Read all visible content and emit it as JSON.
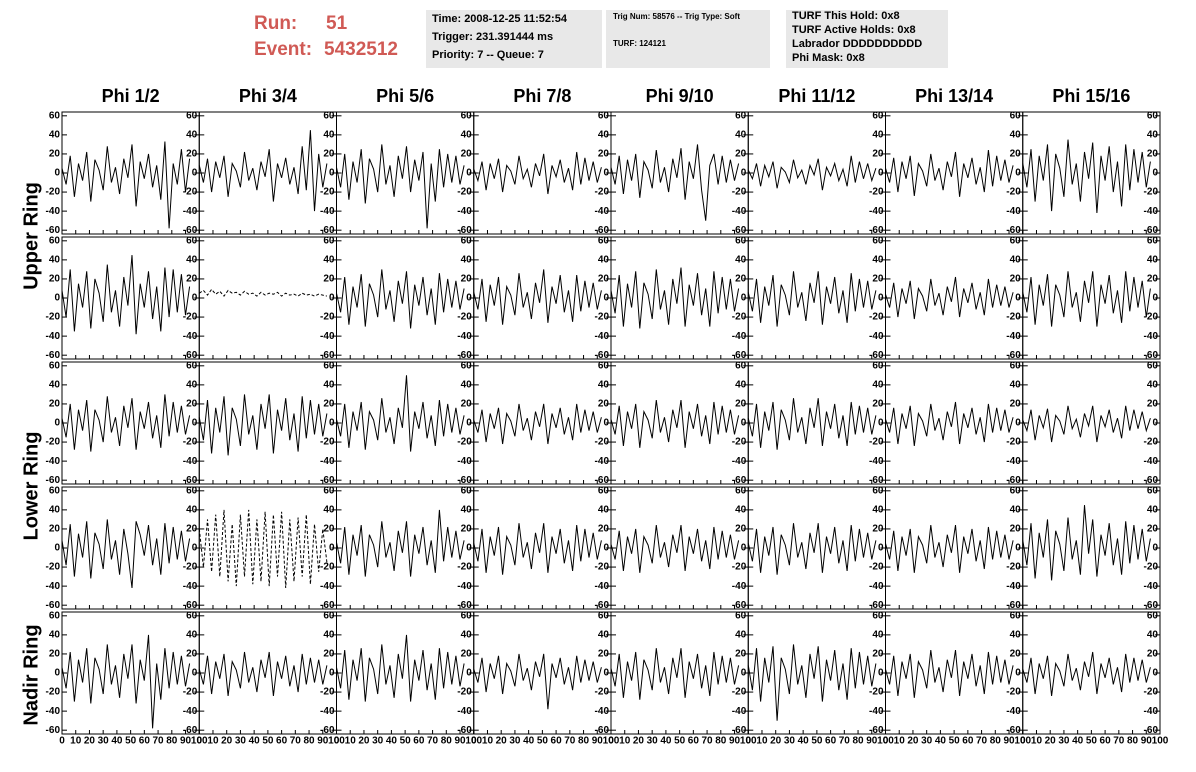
{
  "header": {
    "run_label": "Run:",
    "run": "51",
    "event_label": "Event:",
    "event": "5432512",
    "boxes": [
      [
        "Time: 2008-12-25 11:52:54",
        "Trigger: 231.391444 ms",
        "Priority: 7 -- Queue: 7"
      ],
      [
        "Trig Num: 58576 -- Trig Type: Soft",
        "TURF: 124121"
      ],
      [
        "TURF This Hold: 0x8",
        "TURF Active Holds: 0x8",
        "Labrador DDDDDDDDDD",
        "Phi Mask: 0x8"
      ]
    ]
  },
  "columns": [
    "Phi 1/2",
    "Phi 3/4",
    "Phi 5/6",
    "Phi 7/8",
    "Phi 9/10",
    "Phi 11/12",
    "Phi 13/14",
    "Phi 15/16"
  ],
  "rows": [
    "Upper Ring",
    "Lower Ring",
    "Nadir Ring"
  ],
  "axes": {
    "xlim": [
      0,
      100
    ],
    "ylim": [
      -64,
      64
    ],
    "xticks": [
      0,
      10,
      20,
      30,
      40,
      50,
      60,
      70,
      80,
      90,
      100
    ],
    "yticks": [
      -60,
      -40,
      -20,
      0,
      20,
      40,
      60
    ]
  },
  "dashed": [
    [
      1,
      1
    ],
    [
      3,
      1
    ]
  ],
  "x": [
    0,
    3,
    6,
    9,
    12,
    15,
    18,
    21,
    24,
    27,
    30,
    33,
    36,
    39,
    42,
    45,
    48,
    51,
    54,
    57,
    60,
    63,
    66,
    69,
    72,
    75,
    78,
    81,
    84,
    87,
    90,
    93
  ],
  "waveforms": [
    [
      [
        5,
        -12,
        18,
        -25,
        10,
        -8,
        22,
        -30,
        14,
        3,
        -18,
        28,
        -10,
        6,
        -22,
        15,
        -5,
        30,
        -35,
        12,
        -6,
        20,
        -15,
        8,
        -28,
        33,
        -58,
        10,
        -12,
        25,
        -20,
        15
      ],
      [
        8,
        -10,
        15,
        -20,
        12,
        -5,
        18,
        -25,
        10,
        2,
        -15,
        22,
        -8,
        5,
        -18,
        12,
        -4,
        25,
        -30,
        10,
        -5,
        16,
        -12,
        6,
        -22,
        28,
        -18,
        45,
        -40,
        20,
        -15,
        10
      ],
      [
        6,
        -15,
        20,
        -28,
        12,
        -10,
        25,
        -32,
        15,
        4,
        -20,
        30,
        -12,
        8,
        -25,
        18,
        -6,
        28,
        -20,
        14,
        -8,
        22,
        -58,
        10,
        -30,
        25,
        -15,
        20,
        -10,
        18,
        -12,
        8
      ],
      [
        4,
        -8,
        12,
        -18,
        10,
        -6,
        15,
        -20,
        8,
        2,
        -12,
        18,
        -6,
        4,
        -15,
        10,
        -3,
        20,
        -22,
        8,
        -4,
        14,
        -10,
        5,
        -18,
        22,
        -12,
        16,
        -8,
        12,
        -10,
        6
      ],
      [
        6,
        -12,
        18,
        -22,
        14,
        -8,
        20,
        -26,
        12,
        3,
        -16,
        24,
        -10,
        6,
        -20,
        15,
        -5,
        26,
        -28,
        12,
        -6,
        30,
        -18,
        -50,
        8,
        20,
        -12,
        18,
        -10,
        14,
        -8,
        10
      ],
      [
        3,
        -6,
        10,
        -14,
        8,
        -4,
        12,
        -16,
        6,
        1,
        -10,
        14,
        -5,
        3,
        -12,
        8,
        -2,
        15,
        -18,
        6,
        -3,
        10,
        -8,
        4,
        -14,
        18,
        -10,
        12,
        -6,
        10,
        -8,
        5
      ],
      [
        5,
        -10,
        16,
        -20,
        12,
        -6,
        18,
        -24,
        10,
        2,
        -14,
        20,
        -8,
        5,
        -18,
        12,
        -4,
        22,
        -25,
        10,
        -5,
        16,
        -12,
        6,
        -20,
        24,
        -14,
        18,
        -8,
        14,
        -10,
        8
      ],
      [
        10,
        -15,
        25,
        -30,
        18,
        -8,
        30,
        -40,
        20,
        5,
        -25,
        35,
        -12,
        10,
        -30,
        22,
        -6,
        32,
        -42,
        18,
        -8,
        28,
        -20,
        12,
        -35,
        30,
        -18,
        25,
        -10,
        22,
        -15,
        12
      ]
    ],
    [
      [
        8,
        -20,
        30,
        -35,
        15,
        -10,
        28,
        -32,
        20,
        5,
        -25,
        35,
        -15,
        8,
        -30,
        22,
        -8,
        45,
        -38,
        15,
        -10,
        28,
        -22,
        12,
        -35,
        32,
        -20,
        30,
        -15,
        25,
        -18,
        12
      ],
      [
        5,
        8,
        3,
        9,
        4,
        7,
        2,
        8,
        5,
        6,
        3,
        7,
        4,
        5,
        2,
        6,
        3,
        5,
        4,
        6,
        2,
        5,
        3,
        4,
        2,
        5,
        3,
        4,
        2,
        4,
        3,
        2
      ],
      [
        5,
        -15,
        22,
        -28,
        12,
        -10,
        25,
        -30,
        15,
        3,
        -20,
        30,
        -12,
        8,
        -25,
        18,
        -6,
        28,
        -32,
        14,
        -8,
        22,
        -18,
        10,
        -28,
        26,
        -15,
        20,
        -10,
        18,
        -12,
        10
      ],
      [
        6,
        -12,
        20,
        -25,
        14,
        -8,
        22,
        -28,
        12,
        3,
        -18,
        26,
        -10,
        6,
        -22,
        16,
        -5,
        30,
        -26,
        12,
        -6,
        24,
        -15,
        8,
        -25,
        24,
        -14,
        18,
        -10,
        16,
        -12,
        8
      ],
      [
        8,
        -16,
        24,
        -30,
        15,
        -10,
        28,
        -32,
        16,
        4,
        -22,
        30,
        -12,
        8,
        -28,
        20,
        -6,
        32,
        -30,
        14,
        -8,
        26,
        -18,
        10,
        -30,
        28,
        -16,
        22,
        -12,
        20,
        -14,
        10
      ],
      [
        6,
        -14,
        20,
        -26,
        12,
        -8,
        24,
        -30,
        14,
        3,
        -18,
        28,
        -10,
        6,
        -24,
        16,
        -5,
        28,
        -28,
        12,
        -6,
        22,
        -16,
        8,
        -26,
        26,
        -14,
        20,
        -10,
        18,
        -12,
        8
      ],
      [
        4,
        -10,
        16,
        -20,
        10,
        -6,
        18,
        -22,
        10,
        2,
        -14,
        20,
        -8,
        5,
        -18,
        12,
        -4,
        22,
        -20,
        10,
        -5,
        16,
        -12,
        6,
        -18,
        20,
        -10,
        14,
        -8,
        12,
        -10,
        6
      ],
      [
        6,
        -15,
        22,
        -28,
        14,
        -8,
        25,
        -30,
        14,
        3,
        -20,
        28,
        -10,
        6,
        -25,
        18,
        -5,
        28,
        -30,
        14,
        -6,
        24,
        -16,
        8,
        -26,
        28,
        -14,
        22,
        -10,
        18,
        -20,
        10
      ]
    ],
    [
      [
        5,
        -15,
        20,
        -28,
        14,
        -8,
        24,
        -30,
        14,
        3,
        -20,
        28,
        -10,
        6,
        -24,
        18,
        -5,
        26,
        -28,
        12,
        -6,
        22,
        -16,
        8,
        -26,
        30,
        -14,
        22,
        -10,
        18,
        -12,
        8
      ],
      [
        6,
        -18,
        24,
        -32,
        16,
        -10,
        28,
        -34,
        16,
        4,
        -24,
        30,
        -12,
        8,
        -28,
        20,
        -6,
        30,
        -32,
        14,
        -8,
        26,
        -18,
        10,
        -30,
        28,
        -16,
        24,
        -12,
        20,
        -14,
        10
      ],
      [
        4,
        -14,
        20,
        -26,
        12,
        -8,
        22,
        -28,
        12,
        3,
        -18,
        26,
        -10,
        6,
        -22,
        16,
        -5,
        50,
        -30,
        12,
        -6,
        22,
        -16,
        8,
        -24,
        24,
        -14,
        20,
        -10,
        16,
        -12,
        8
      ],
      [
        3,
        -10,
        14,
        -20,
        10,
        -6,
        16,
        -22,
        10,
        2,
        -14,
        20,
        -8,
        5,
        -18,
        12,
        -4,
        20,
        -22,
        10,
        -5,
        16,
        -12,
        6,
        -18,
        20,
        -10,
        14,
        -8,
        12,
        -10,
        6
      ],
      [
        4,
        -12,
        18,
        -24,
        12,
        -6,
        20,
        -26,
        12,
        3,
        -16,
        24,
        -10,
        6,
        -20,
        14,
        -5,
        24,
        -26,
        12,
        -6,
        20,
        -14,
        8,
        -22,
        22,
        -12,
        18,
        -10,
        14,
        -12,
        8
      ],
      [
        5,
        -14,
        20,
        -26,
        12,
        -8,
        22,
        -28,
        14,
        3,
        -18,
        26,
        -10,
        6,
        -22,
        16,
        -5,
        26,
        -24,
        12,
        -6,
        20,
        -16,
        8,
        -24,
        22,
        -12,
        18,
        -10,
        16,
        -12,
        8
      ],
      [
        4,
        -10,
        16,
        -22,
        10,
        -6,
        18,
        -24,
        10,
        2,
        -14,
        20,
        -8,
        5,
        -18,
        12,
        -4,
        22,
        -22,
        10,
        -5,
        16,
        -12,
        6,
        -20,
        20,
        -10,
        16,
        -8,
        14,
        -10,
        6
      ],
      [
        3,
        -8,
        14,
        -18,
        8,
        -5,
        15,
        -20,
        8,
        2,
        -12,
        18,
        -6,
        4,
        -15,
        10,
        -3,
        18,
        -20,
        8,
        -4,
        14,
        -10,
        5,
        -16,
        18,
        -8,
        14,
        -6,
        12,
        -8,
        5
      ]
    ],
    [
      [
        8,
        -18,
        25,
        -30,
        15,
        -10,
        28,
        -32,
        16,
        4,
        -22,
        30,
        -12,
        8,
        -28,
        20,
        -6,
        -42,
        28,
        14,
        -8,
        24,
        -18,
        10,
        -28,
        26,
        -16,
        22,
        -12,
        18,
        -14,
        10
      ],
      [
        20,
        -20,
        30,
        -25,
        35,
        -30,
        40,
        -35,
        25,
        -40,
        35,
        -30,
        40,
        -38,
        30,
        -35,
        38,
        -40,
        35,
        -30,
        38,
        -42,
        30,
        -35,
        32,
        -30,
        35,
        -38,
        25,
        -25,
        20,
        -15
      ],
      [
        6,
        -16,
        22,
        -28,
        14,
        -8,
        24,
        -30,
        14,
        3,
        -20,
        28,
        -10,
        6,
        -24,
        18,
        -5,
        28,
        -30,
        14,
        -6,
        22,
        -18,
        8,
        -26,
        40,
        -14,
        22,
        -10,
        18,
        -12,
        8
      ],
      [
        5,
        -14,
        20,
        -26,
        12,
        -8,
        22,
        -28,
        12,
        3,
        -18,
        26,
        -10,
        6,
        -22,
        16,
        -5,
        26,
        -26,
        12,
        -6,
        20,
        -16,
        8,
        -24,
        24,
        -14,
        20,
        -10,
        16,
        -12,
        8
      ],
      [
        4,
        -12,
        18,
        -24,
        12,
        -6,
        20,
        -26,
        12,
        3,
        -16,
        24,
        -10,
        6,
        -20,
        14,
        -5,
        24,
        -24,
        12,
        -6,
        20,
        -14,
        8,
        -22,
        22,
        -12,
        18,
        -10,
        14,
        -12,
        8
      ],
      [
        5,
        -14,
        20,
        -26,
        12,
        -8,
        22,
        -28,
        14,
        3,
        -18,
        26,
        -10,
        6,
        -22,
        16,
        -5,
        26,
        -26,
        12,
        -6,
        22,
        -16,
        8,
        -24,
        24,
        -14,
        20,
        -10,
        16,
        -12,
        8
      ],
      [
        5,
        -12,
        18,
        -24,
        12,
        -8,
        20,
        -26,
        12,
        3,
        -16,
        24,
        -10,
        6,
        -20,
        14,
        -5,
        24,
        -26,
        12,
        -6,
        20,
        -14,
        8,
        -22,
        22,
        -12,
        18,
        -10,
        14,
        -12,
        8
      ],
      [
        8,
        -18,
        26,
        -32,
        16,
        -10,
        30,
        -34,
        18,
        4,
        -24,
        32,
        -12,
        8,
        -28,
        45,
        -6,
        30,
        -30,
        14,
        -8,
        26,
        -18,
        10,
        -28,
        28,
        -16,
        24,
        -12,
        20,
        -14,
        10
      ]
    ],
    [
      [
        6,
        -16,
        22,
        -30,
        14,
        -10,
        26,
        -32,
        16,
        4,
        -22,
        30,
        -12,
        8,
        -26,
        20,
        -6,
        30,
        -32,
        14,
        -8,
        40,
        -58,
        10,
        -28,
        26,
        -16,
        22,
        -12,
        18,
        -14,
        10
      ],
      [
        4,
        -12,
        18,
        -22,
        12,
        -6,
        20,
        -24,
        12,
        3,
        -16,
        22,
        -10,
        6,
        -20,
        14,
        -5,
        22,
        -24,
        12,
        -6,
        18,
        -14,
        8,
        -20,
        20,
        -12,
        16,
        -10,
        14,
        -12,
        8
      ],
      [
        6,
        -16,
        24,
        -28,
        14,
        -8,
        26,
        -30,
        16,
        4,
        -22,
        30,
        -12,
        8,
        -26,
        20,
        -6,
        40,
        -30,
        14,
        -8,
        24,
        -18,
        10,
        -28,
        26,
        -16,
        22,
        -12,
        18,
        -14,
        10
      ],
      [
        4,
        -10,
        16,
        -20,
        10,
        -6,
        18,
        -22,
        10,
        2,
        -14,
        20,
        -8,
        5,
        -18,
        12,
        -4,
        20,
        -38,
        10,
        -5,
        16,
        -12,
        6,
        -18,
        18,
        -10,
        14,
        -8,
        12,
        -10,
        6
      ],
      [
        5,
        -14,
        20,
        -26,
        12,
        -8,
        22,
        -28,
        14,
        3,
        -18,
        26,
        -10,
        6,
        -22,
        16,
        -5,
        26,
        -26,
        12,
        -6,
        20,
        -16,
        8,
        -24,
        22,
        -12,
        18,
        -10,
        16,
        -12,
        8
      ],
      [
        8,
        -18,
        26,
        -30,
        16,
        -10,
        28,
        -50,
        16,
        4,
        -22,
        30,
        -12,
        8,
        -26,
        20,
        -6,
        28,
        -30,
        14,
        -8,
        24,
        -18,
        10,
        -28,
        26,
        -16,
        22,
        -12,
        18,
        -14,
        10
      ],
      [
        4,
        -12,
        18,
        -24,
        12,
        -6,
        20,
        -26,
        12,
        3,
        -16,
        24,
        -10,
        6,
        -20,
        14,
        -5,
        24,
        -24,
        12,
        -6,
        20,
        -14,
        8,
        -22,
        22,
        -12,
        18,
        -10,
        14,
        -12,
        8
      ],
      [
        4,
        -10,
        16,
        -22,
        10,
        -6,
        18,
        -24,
        10,
        2,
        -14,
        20,
        -8,
        5,
        -18,
        12,
        -4,
        22,
        -22,
        10,
        -5,
        16,
        -12,
        6,
        -20,
        20,
        -10,
        16,
        -8,
        14,
        -10,
        6
      ]
    ]
  ]
}
